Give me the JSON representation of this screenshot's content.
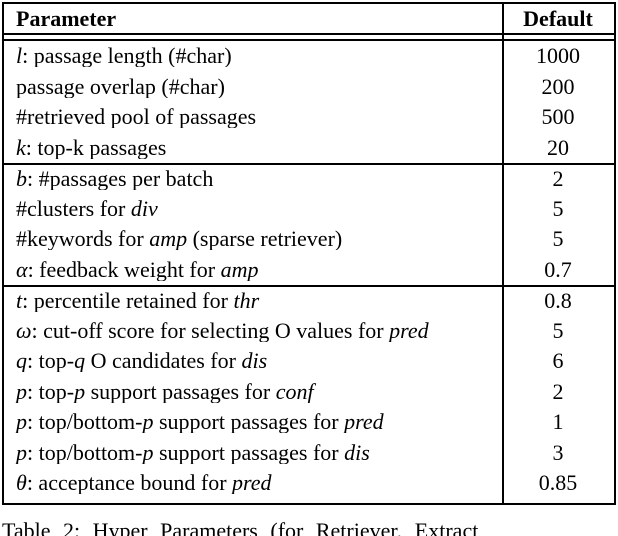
{
  "table": {
    "headers": {
      "parameter": "Parameter",
      "default": "Default"
    },
    "rows": [
      {
        "param": [
          [
            "l",
            true
          ],
          [
            ": passage length (#char)",
            false
          ]
        ],
        "value": "1000",
        "sep_before": false
      },
      {
        "param": [
          [
            "passage overlap (#char)",
            false
          ]
        ],
        "value": "200",
        "sep_before": false
      },
      {
        "param": [
          [
            "#retrieved pool of passages",
            false
          ]
        ],
        "value": "500",
        "sep_before": false
      },
      {
        "param": [
          [
            "k",
            true
          ],
          [
            ": top-k passages",
            false
          ]
        ],
        "value": "20",
        "sep_before": false
      },
      {
        "param": [
          [
            "b",
            true
          ],
          [
            ": #passages per batch",
            false
          ]
        ],
        "value": "2",
        "sep_before": true
      },
      {
        "param": [
          [
            "#clusters for ",
            false
          ],
          [
            "div",
            true
          ]
        ],
        "value": "5",
        "sep_before": false
      },
      {
        "param": [
          [
            "#keywords for ",
            false
          ],
          [
            "amp",
            true
          ],
          [
            " (sparse retriever)",
            false
          ]
        ],
        "value": "5",
        "sep_before": false
      },
      {
        "param": [
          [
            "α",
            true
          ],
          [
            ": feedback weight for ",
            false
          ],
          [
            "amp",
            true
          ]
        ],
        "value": "0.7",
        "sep_before": false
      },
      {
        "param": [
          [
            "t",
            true
          ],
          [
            ": percentile retained for ",
            false
          ],
          [
            "thr",
            true
          ]
        ],
        "value": "0.8",
        "sep_before": true
      },
      {
        "param": [
          [
            "ω",
            true
          ],
          [
            ": cut-off score for selecting O values for ",
            false
          ],
          [
            "pred",
            true
          ]
        ],
        "value": "5",
        "sep_before": false
      },
      {
        "param": [
          [
            "q",
            true
          ],
          [
            ": top-",
            false
          ],
          [
            "q",
            true
          ],
          [
            " O candidates for ",
            false
          ],
          [
            "dis",
            true
          ]
        ],
        "value": "6",
        "sep_before": false
      },
      {
        "param": [
          [
            "p",
            true
          ],
          [
            ": top-",
            false
          ],
          [
            "p",
            true
          ],
          [
            " support passages for ",
            false
          ],
          [
            "conf",
            true
          ]
        ],
        "value": "2",
        "sep_before": false
      },
      {
        "param": [
          [
            "p",
            true
          ],
          [
            ": top/bottom-",
            false
          ],
          [
            "p",
            true
          ],
          [
            " support passages for ",
            false
          ],
          [
            "pred",
            true
          ]
        ],
        "value": "1",
        "sep_before": false
      },
      {
        "param": [
          [
            "p",
            true
          ],
          [
            ": top/bottom-",
            false
          ],
          [
            "p",
            true
          ],
          [
            " support passages for ",
            false
          ],
          [
            "dis",
            true
          ]
        ],
        "value": "3",
        "sep_before": false
      },
      {
        "param": [
          [
            "θ",
            true
          ],
          [
            ": acceptance bound for ",
            false
          ],
          [
            "pred",
            true
          ]
        ],
        "value": "0.85",
        "sep_before": false
      }
    ]
  },
  "caption": {
    "text": "Table 2: Hyper Parameters (for Retriever, Extract"
  },
  "colors": {
    "border": "#000000",
    "text": "#000000",
    "background": "#ffffff"
  }
}
